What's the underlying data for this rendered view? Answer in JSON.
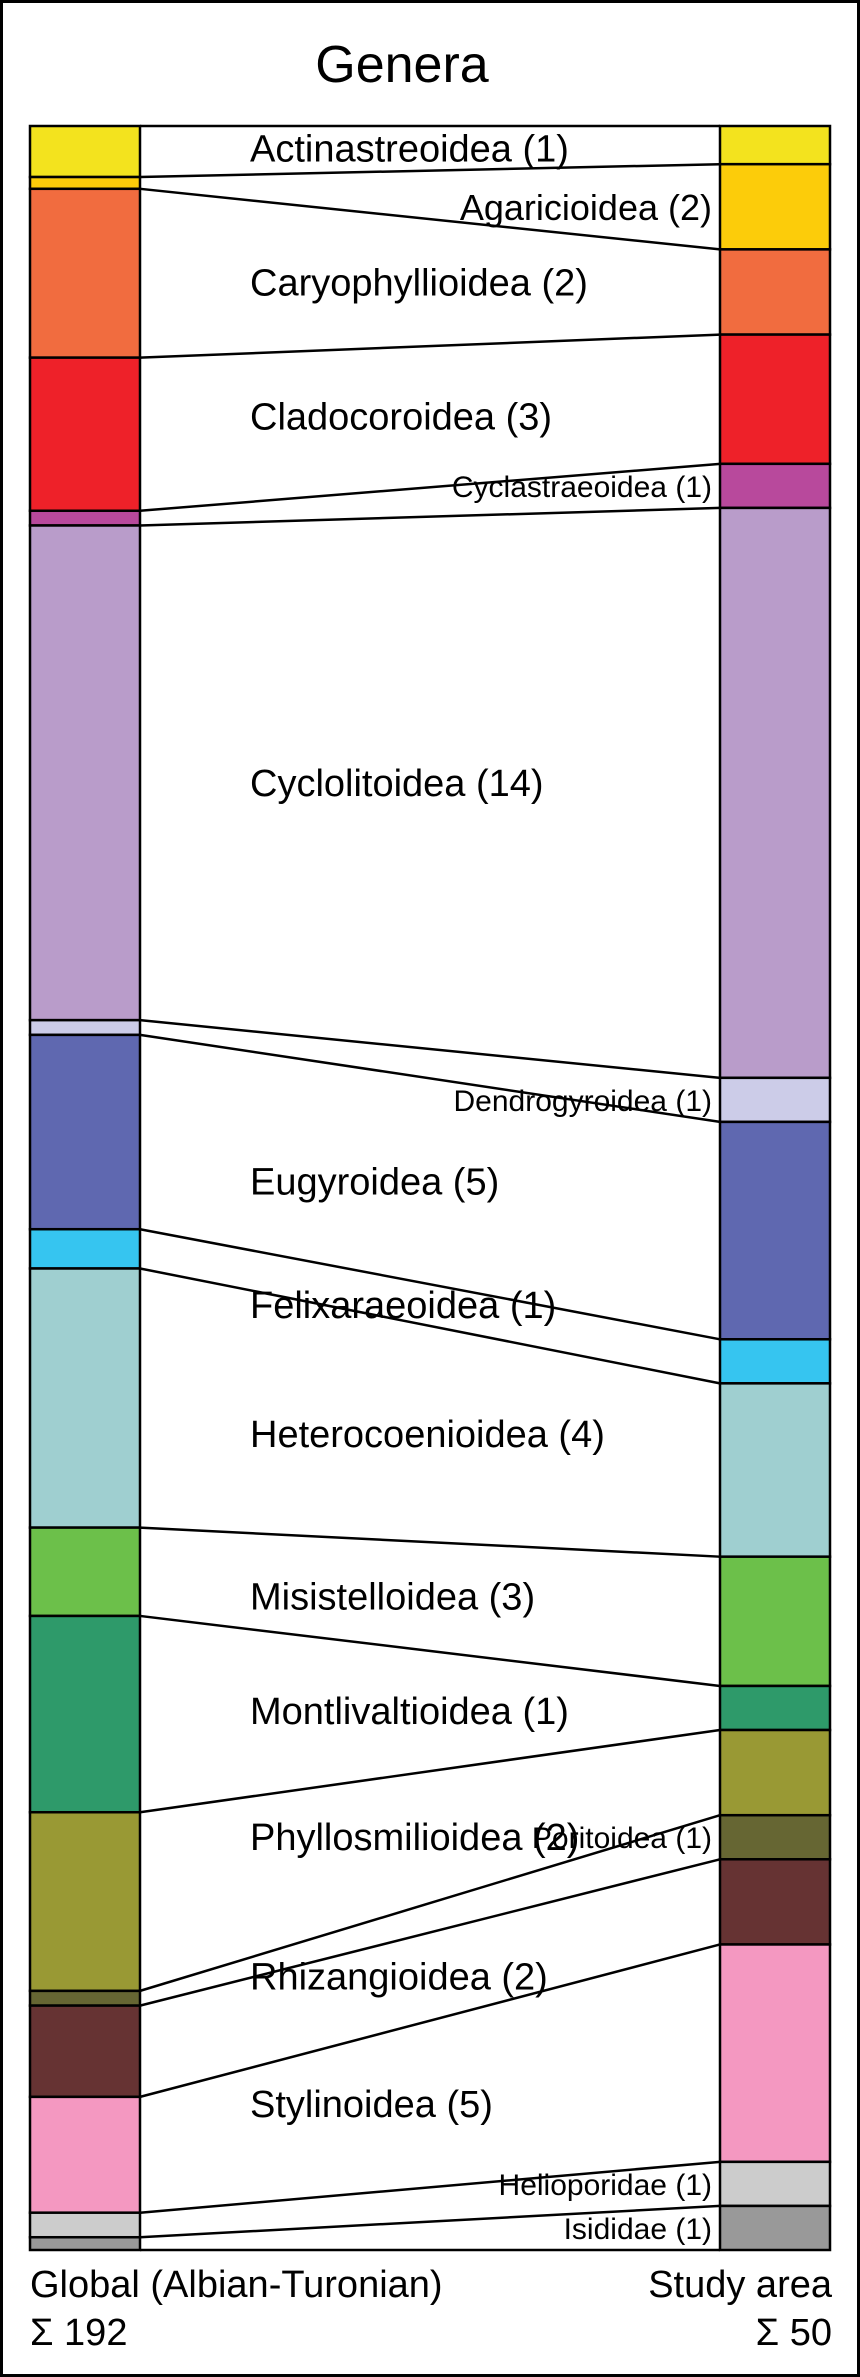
{
  "chart_data": {
    "type": "stacked-bar-comparison",
    "title": "Genera",
    "columns": [
      {
        "key": "global",
        "label": "Global (Albian-Turonian)",
        "total_label": "Σ 192",
        "total": 192
      },
      {
        "key": "study",
        "label": "Study area",
        "total_label": "Σ 50",
        "total": 50
      }
    ],
    "categories": [
      {
        "name": "Actinastreoidea (1)",
        "color": "#f3e31e",
        "global": 5.2,
        "study": 1.3
      },
      {
        "name": "Agaricioidea (2)",
        "color": "#fccc0a",
        "global": 1.2,
        "study": 2.9
      },
      {
        "name": "Caryophyllioidea (2)",
        "color": "#f16c3f",
        "global": 17.2,
        "study": 2.9
      },
      {
        "name": "Cladocoroidea (3)",
        "color": "#ee2129",
        "global": 15.6,
        "study": 4.4
      },
      {
        "name": "Cyclastraeoidea (1)",
        "color": "#b8499c",
        "global": 1.5,
        "study": 1.5
      },
      {
        "name": "Cyclolitoidea (14)",
        "color": "#b99cca",
        "global": 50.4,
        "study": 19.4
      },
      {
        "name": "Dendrogyroidea (1)",
        "color": "#cccce8",
        "global": 1.5,
        "study": 1.5
      },
      {
        "name": "Eugyroidea (5)",
        "color": "#5f68b0",
        "global": 19.8,
        "study": 7.4
      },
      {
        "name": "Felixaraeoidea (1)",
        "color": "#36c5f0",
        "global": 4.0,
        "study": 1.5
      },
      {
        "name": "Heterocoenioidea (4)",
        "color": "#9fcfd0",
        "global": 26.4,
        "study": 5.9
      },
      {
        "name": "Misistelloidea (3)",
        "color": "#6cc04a",
        "global": 9.0,
        "study": 4.4
      },
      {
        "name": "Montlivaltioidea (1)",
        "color": "#2e9a6a",
        "global": 20.0,
        "study": 1.5
      },
      {
        "name": "Phyllosmilioidea (2)",
        "color": "#999934",
        "global": 18.2,
        "study": 2.9
      },
      {
        "name": "Poritoidea (1)",
        "color": "#666633",
        "global": 1.5,
        "study": 1.5
      },
      {
        "name": "Rhizangioidea (2)",
        "color": "#663333",
        "global": 9.3,
        "study": 2.9
      },
      {
        "name": "Stylinoidea (5)",
        "color": "#f498c1",
        "global": 11.8,
        "study": 7.4
      },
      {
        "name": "Helioporidae (1)",
        "color": "#cccccc",
        "global": 2.5,
        "study": 1.5
      },
      {
        "name": "Isididae (1)",
        "color": "#999999",
        "global": 1.3,
        "study": 1.5
      }
    ]
  }
}
